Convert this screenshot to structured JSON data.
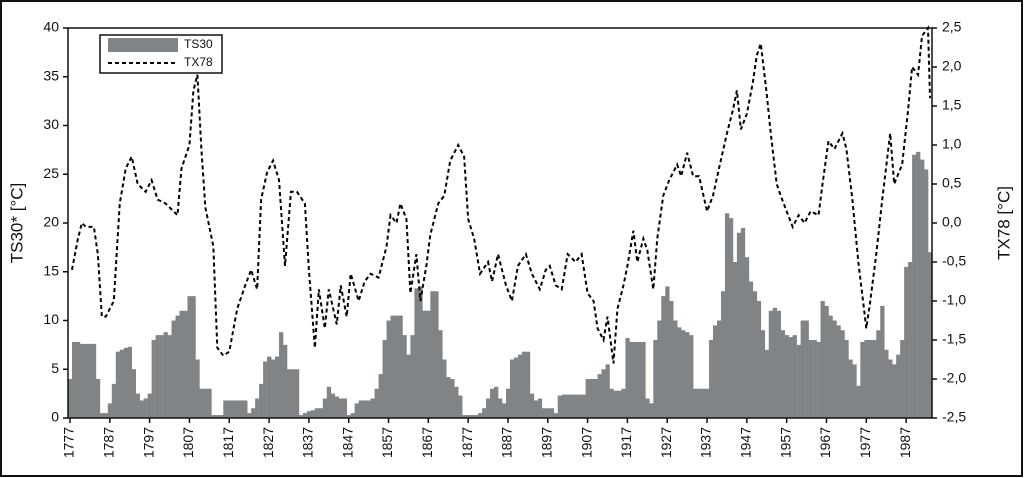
{
  "chart_data": {
    "type": "bar",
    "x": [
      1777,
      1778,
      1779,
      1780,
      1781,
      1782,
      1783,
      1784,
      1785,
      1786,
      1787,
      1788,
      1789,
      1790,
      1791,
      1792,
      1793,
      1794,
      1795,
      1796,
      1797,
      1798,
      1799,
      1800,
      1801,
      1802,
      1803,
      1804,
      1805,
      1806,
      1807,
      1808,
      1809,
      1810,
      1811,
      1812,
      1813,
      1814,
      1815,
      1816,
      1817,
      1818,
      1819,
      1820,
      1821,
      1822,
      1823,
      1824,
      1825,
      1826,
      1827,
      1828,
      1829,
      1830,
      1831,
      1832,
      1833,
      1834,
      1835,
      1836,
      1837,
      1838,
      1839,
      1840,
      1841,
      1842,
      1843,
      1844,
      1845,
      1846,
      1847,
      1848,
      1849,
      1850,
      1851,
      1852,
      1853,
      1854,
      1855,
      1856,
      1857,
      1858,
      1859,
      1860,
      1861,
      1862,
      1863,
      1864,
      1865,
      1866,
      1867,
      1868,
      1869,
      1870,
      1871,
      1872,
      1873,
      1874,
      1875,
      1876,
      1877,
      1878,
      1879,
      1880,
      1881,
      1882,
      1883,
      1884,
      1885,
      1886,
      1887,
      1888,
      1889,
      1890,
      1891,
      1892,
      1893,
      1894,
      1895,
      1896,
      1897,
      1898,
      1899,
      1900,
      1901,
      1902,
      1903,
      1904,
      1905,
      1906,
      1907,
      1908,
      1909,
      1910,
      1911,
      1912,
      1913,
      1914,
      1915,
      1916,
      1917,
      1918,
      1919,
      1920,
      1921,
      1922,
      1923,
      1924,
      1925,
      1926,
      1927,
      1928,
      1929,
      1930,
      1931,
      1932,
      1933,
      1934,
      1935,
      1936,
      1937,
      1938,
      1939,
      1940,
      1941,
      1942,
      1943,
      1944,
      1945,
      1946,
      1947,
      1948,
      1949,
      1950,
      1951,
      1952,
      1953,
      1954,
      1955,
      1956,
      1957,
      1958,
      1959,
      1960,
      1961,
      1962,
      1963,
      1964,
      1965,
      1966,
      1967,
      1968,
      1969,
      1970,
      1971,
      1972,
      1973,
      1974,
      1975,
      1976,
      1977,
      1978,
      1979,
      1980,
      1981,
      1982,
      1983,
      1984,
      1985,
      1986,
      1987,
      1988,
      1989,
      1990,
      1991,
      1992,
      1993
    ],
    "series": [
      {
        "name": "TS30",
        "color": "#808487",
        "values": [
          4,
          7.8,
          7.8,
          7.6,
          7.6,
          7.6,
          7.6,
          4,
          0.5,
          0.5,
          1.5,
          3.5,
          6.8,
          7,
          7.2,
          7.3,
          5,
          2.5,
          1.8,
          2,
          2.5,
          8,
          8.5,
          8.5,
          8.8,
          8.5,
          10,
          10.5,
          11,
          11,
          12.5,
          12.5,
          6,
          3,
          3,
          3,
          0.3,
          0.3,
          0.3,
          1.8,
          1.8,
          1.8,
          1.8,
          1.8,
          1.8,
          0.5,
          1,
          2,
          3.5,
          5.8,
          6.3,
          6,
          6.3,
          8.8,
          7.5,
          5,
          5,
          5,
          0.3,
          0.5,
          0.7,
          0.8,
          1,
          1,
          2,
          3.2,
          2.5,
          2.2,
          2,
          2,
          0.3,
          0.5,
          1.5,
          1.8,
          1.8,
          1.8,
          2,
          3,
          4.5,
          8,
          10,
          10.5,
          10.5,
          10.5,
          8.5,
          6.5,
          8.5,
          13.3,
          13.5,
          11,
          11,
          13,
          13,
          9,
          6,
          4.2,
          4,
          3.2,
          2.3,
          0.3,
          0.3,
          0.3,
          0.3,
          0.5,
          1,
          2,
          3,
          3.2,
          2,
          1.5,
          3,
          6,
          6.2,
          6.5,
          6.8,
          6.8,
          2.5,
          1.8,
          2,
          1,
          1,
          1,
          0.5,
          2.3,
          2.4,
          2.4,
          2.4,
          2.4,
          2.4,
          2.4,
          4,
          4,
          4,
          4.5,
          5,
          5.5,
          3,
          2.8,
          2.8,
          3,
          8.2,
          7.8,
          7.8,
          7.8,
          7.8,
          2,
          1.5,
          8,
          10,
          12.5,
          13.5,
          12,
          10,
          9.3,
          9,
          8.8,
          8.5,
          3,
          3,
          3,
          3,
          8,
          9.5,
          10,
          13,
          21,
          20.5,
          16,
          19,
          19.5,
          16.5,
          14,
          13,
          12,
          9,
          7,
          11,
          11.3,
          11,
          9,
          8.5,
          8.3,
          8.5,
          7.5,
          10,
          10,
          8,
          8,
          7.8,
          12,
          11.5,
          10.5,
          10,
          9.5,
          9,
          8,
          6,
          5.5,
          3.3,
          7.8,
          8,
          8,
          8,
          9,
          11.5,
          7,
          6,
          5.5,
          6.5,
          8,
          15.5,
          16,
          27,
          27.3,
          26.5,
          25.5,
          17
        ]
      },
      {
        "name": "TX78",
        "type": "line",
        "axis": "y2",
        "color": "#000000",
        "x": [
          1777.5,
          1779,
          1780,
          1781,
          1783,
          1784,
          1785,
          1786,
          1788,
          1789.5,
          1791,
          1792.5,
          1794,
          1796,
          1797.5,
          1799,
          1801,
          1804,
          1805,
          1807,
          1808,
          1809,
          1810,
          1811,
          1813,
          1814,
          1815.5,
          1817,
          1819,
          1821,
          1822.5,
          1824,
          1825,
          1826.5,
          1828,
          1829.5,
          1831,
          1832.5,
          1834,
          1836,
          1837,
          1838.5,
          1839.5,
          1841,
          1842,
          1844,
          1845,
          1846.5,
          1847.5,
          1849.5,
          1851,
          1852.5,
          1854.5,
          1856.5,
          1857.5,
          1859,
          1860,
          1861.5,
          1862.5,
          1864,
          1865,
          1866.5,
          1867.5,
          1869.5,
          1871,
          1872.5,
          1874.5,
          1876,
          1877,
          1878.5,
          1880,
          1882,
          1883,
          1884.5,
          1886.5,
          1888,
          1889.5,
          1891.5,
          1893,
          1895,
          1896.5,
          1897.5,
          1899,
          1900.5,
          1902,
          1904,
          1905.5,
          1907,
          1908.5,
          1909.5,
          1911,
          1912,
          1913.5,
          1914.5,
          1916,
          1917,
          1918.5,
          1919.5,
          1921,
          1922,
          1923.5,
          1924.5,
          1926,
          1927.5,
          1929.5,
          1930.5,
          1932,
          1933.5,
          1935,
          1937,
          1938.5,
          1940,
          1942,
          1943.5,
          1944.5,
          1945.5,
          1947,
          1948.5,
          1949.5,
          1950.5,
          1952,
          1953,
          1954.5,
          1955.5,
          1957,
          1958.5,
          1960,
          1961.5,
          1963,
          1965,
          1966,
          1967.5,
          1969,
          1971,
          1972,
          1973.5,
          1975,
          1977,
          1978,
          1979.5,
          1981,
          1983,
          1984,
          1986,
          1987.5,
          1988.5,
          1990,
          1991,
          1992.5,
          1993
        ],
        "values": [
          -0.6,
          -0.2,
          0,
          -0.05,
          -0.05,
          -0.4,
          -1.2,
          -1.2,
          -1,
          0.25,
          0.7,
          0.85,
          0.5,
          0.4,
          0.55,
          0.3,
          0.25,
          0.1,
          0.7,
          1,
          1.7,
          1.9,
          0.95,
          0.2,
          -0.3,
          -1.6,
          -1.7,
          -1.65,
          -1.1,
          -0.8,
          -0.6,
          -0.85,
          0.3,
          0.65,
          0.8,
          0.55,
          -0.55,
          0.4,
          0.4,
          0.25,
          -0.6,
          -1.6,
          -0.85,
          -1.35,
          -0.85,
          -1.3,
          -0.8,
          -1.2,
          -0.65,
          -1,
          -0.75,
          -0.65,
          -0.7,
          -0.3,
          0.1,
          0,
          0.25,
          0.05,
          -0.9,
          -0.4,
          -1,
          -0.55,
          -0.15,
          0.25,
          0.35,
          0.8,
          1,
          0.85,
          0.05,
          -0.2,
          -0.65,
          -0.5,
          -0.75,
          -0.4,
          -0.8,
          -1,
          -0.55,
          -0.4,
          -0.65,
          -0.85,
          -0.6,
          -0.55,
          -0.8,
          -0.85,
          -0.4,
          -0.5,
          -0.4,
          -0.9,
          -1,
          -1.35,
          -1.5,
          -1.2,
          -1.8,
          -1.1,
          -0.8,
          -0.55,
          -0.1,
          -0.5,
          -0.2,
          -0.35,
          -0.85,
          -0.2,
          0.35,
          0.55,
          0.75,
          0.6,
          0.9,
          0.6,
          0.6,
          0.15,
          0.35,
          0.7,
          1.15,
          1.45,
          1.7,
          1.2,
          1.4,
          1.8,
          2.15,
          2.3,
          1.65,
          1.15,
          0.5,
          0.35,
          0.15,
          -0.05,
          0.1,
          0,
          0.15,
          0.1,
          0.5,
          1.05,
          0.95,
          1.15,
          0.95,
          0.3,
          -0.5,
          -1.35,
          -1,
          -0.4,
          0.3,
          1.15,
          0.5,
          0.75,
          1.45,
          2,
          1.9,
          2.4,
          2.5,
          1.6
        ]
      }
    ],
    "xlim": [
      1776.5,
      1993.5
    ],
    "xticks": [
      1777,
      1787,
      1797,
      1807,
      1817,
      1827,
      1837,
      1847,
      1857,
      1867,
      1877,
      1887,
      1897,
      1907,
      1917,
      1927,
      1937,
      1947,
      1957,
      1967,
      1977,
      1987
    ],
    "ylabel": "TS30* [°C]",
    "ylim": [
      0,
      40
    ],
    "yticks": [
      0,
      5,
      10,
      15,
      20,
      25,
      30,
      35,
      40
    ],
    "y2label": "TX78 [°C]",
    "y2lim": [
      -2.5,
      2.5
    ],
    "y2ticks": [
      {
        "value": -2.5,
        "label": "-2,5"
      },
      {
        "value": -2,
        "label": "-2,0"
      },
      {
        "value": -1.5,
        "label": "-1,5"
      },
      {
        "value": -1,
        "label": "-1,0"
      },
      {
        "value": -0.5,
        "label": "-0,5"
      },
      {
        "value": 0,
        "label": "0,0"
      },
      {
        "value": 0.5,
        "label": "0,5"
      },
      {
        "value": 1,
        "label": "1,0"
      },
      {
        "value": 1.5,
        "label": "1,5"
      },
      {
        "value": 2,
        "label": "2,0"
      },
      {
        "value": 2.5,
        "label": "2,5"
      }
    ],
    "legend": "top-left"
  }
}
